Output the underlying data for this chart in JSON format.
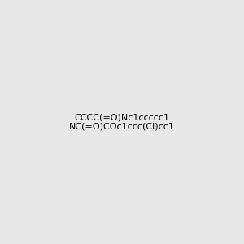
{
  "smiles": "CCCC(=O)Nc1ccccc1NC(=O)COc1ccc(Cl)cc1",
  "background_color": "#e8e8e8",
  "figsize": [
    3.0,
    3.0
  ],
  "dpi": 100
}
